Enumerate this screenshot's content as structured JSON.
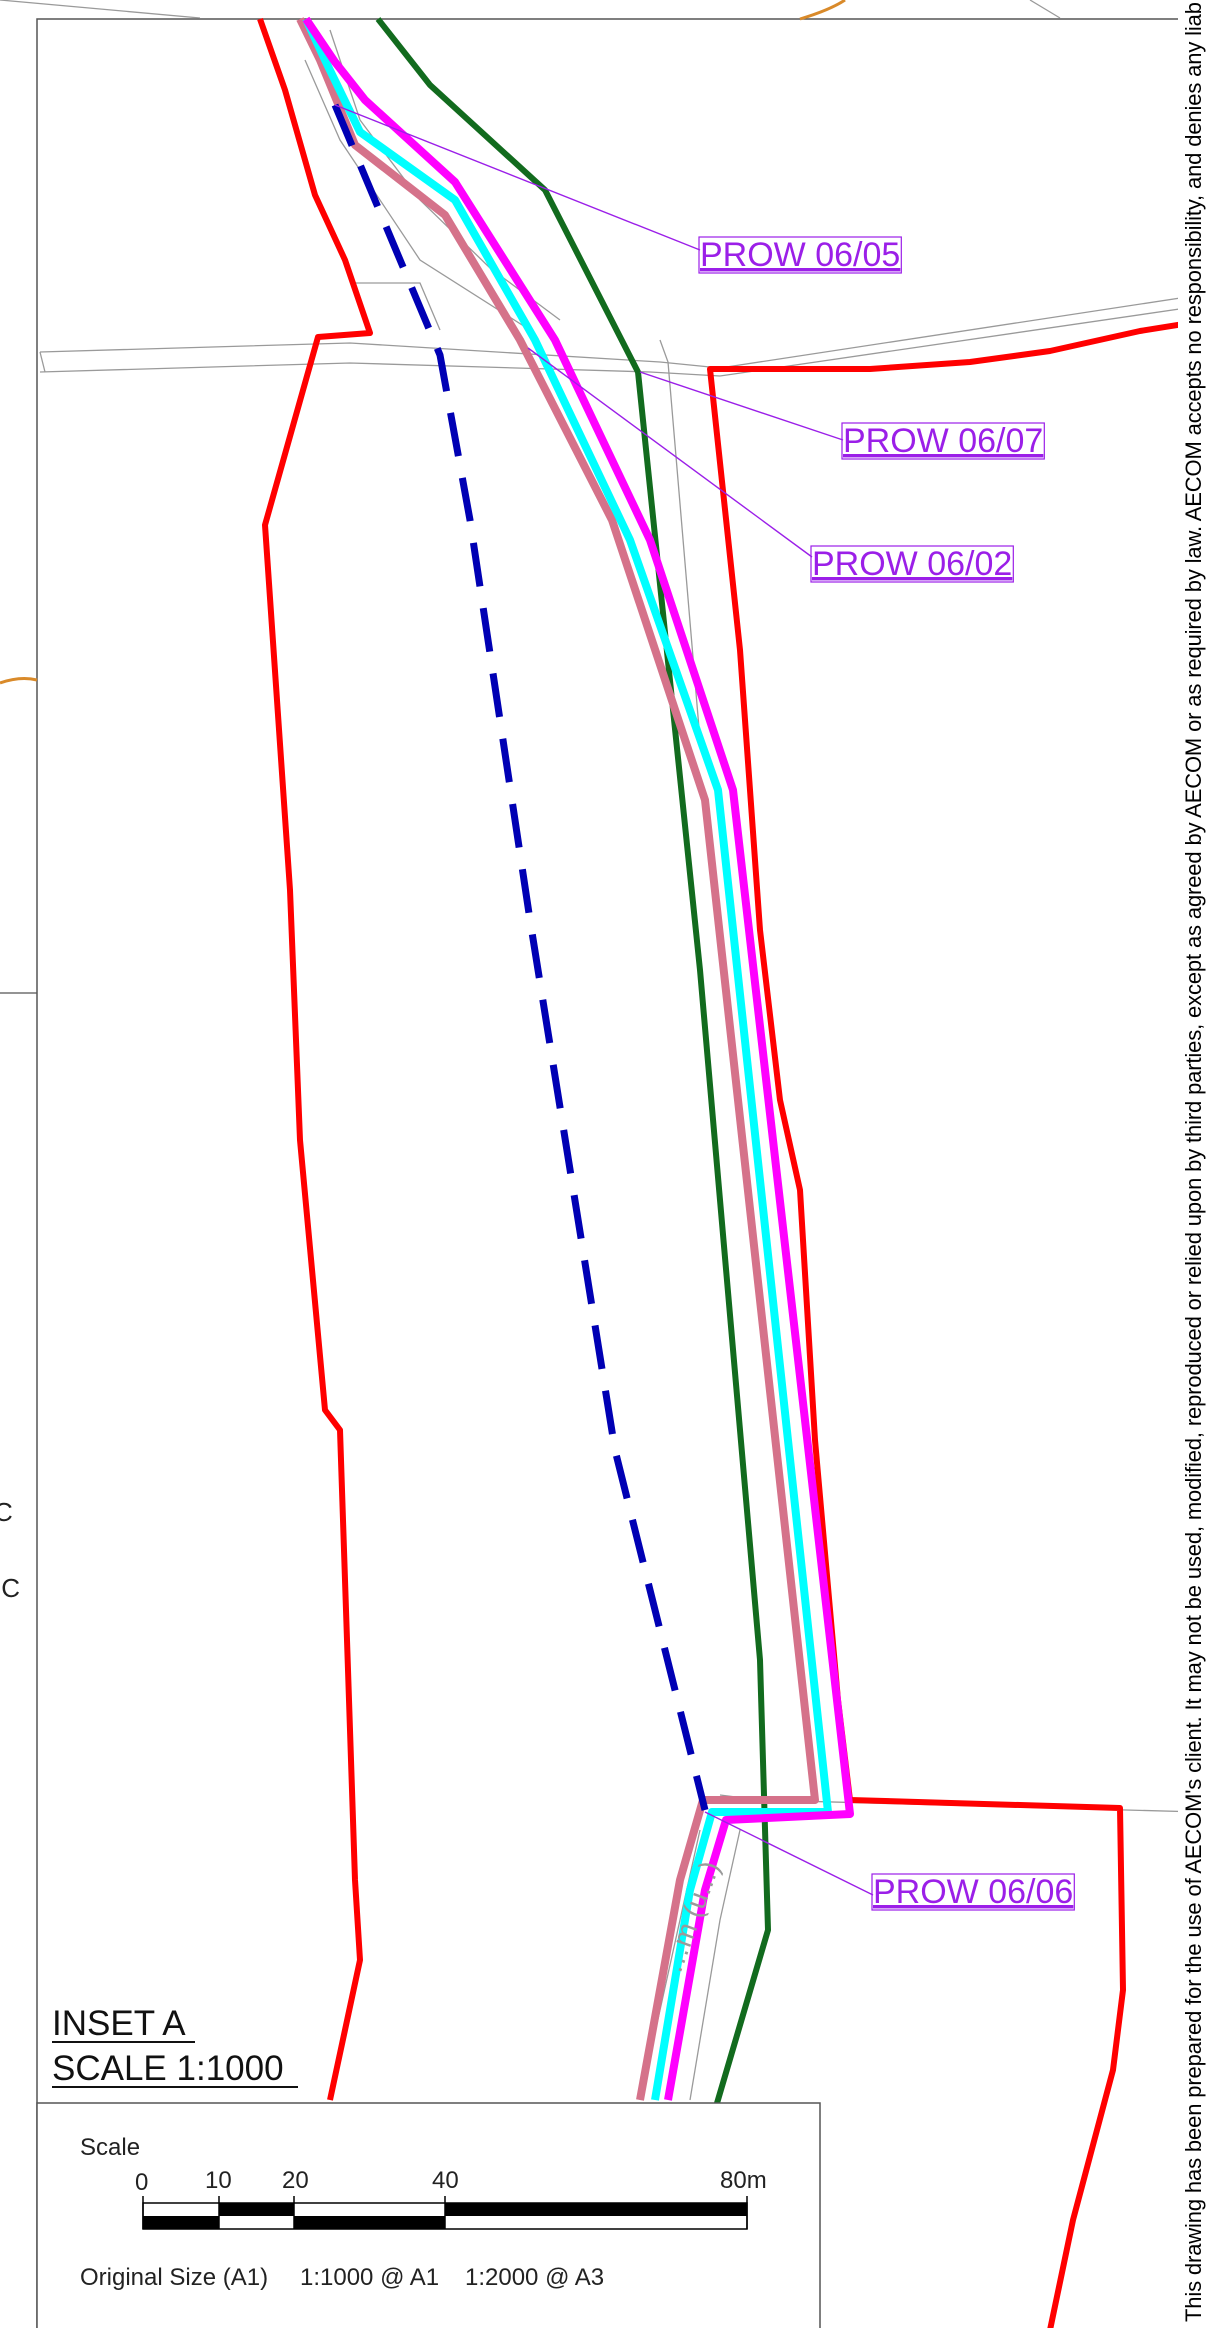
{
  "inset": {
    "title": "INSET A",
    "scale": "SCALE 1:1000"
  },
  "prow_labels": [
    {
      "id": "06-05",
      "text": "PROW 06/05"
    },
    {
      "id": "06-07",
      "text": "PROW 06/07"
    },
    {
      "id": "06-02",
      "text": "PROW 06/02"
    },
    {
      "id": "06-06",
      "text": "PROW 06/06"
    }
  ],
  "road_text": "…m (u...)",
  "side_fragments": [
    "C",
    "IC"
  ],
  "scale_bar": {
    "title": "Scale",
    "ticks": [
      "0",
      "10",
      "20",
      "40",
      "80m"
    ],
    "original_size": "Original Size (A1)",
    "ratio_a1": "1:1000 @ A1",
    "ratio_a3": "1:2000 @ A3"
  },
  "disclaimer": "This drawing has been prepared for the use of AECOM's client. It may not be used, modified, reproduced or relied upon by third parties, except as agreed by AECOM or as required by law. AECOM accepts no responsibility, and denies any liab",
  "colors": {
    "boundary_red": "#ff0000",
    "route_magenta": "#ff00ff",
    "route_cyan": "#00ffff",
    "route_pink": "#d5728a",
    "route_green": "#126b1e",
    "prow_dashed_blue": "#0000b4",
    "label_purple": "#9b1fe8",
    "road_grey": "#9a9a9a",
    "orange": "#d98a2a"
  }
}
